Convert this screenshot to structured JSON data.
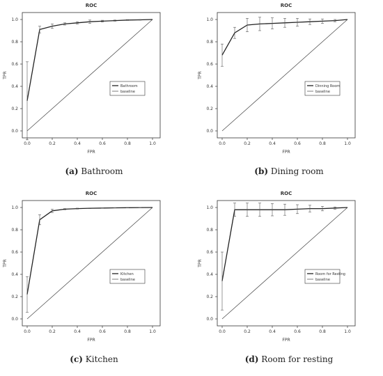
{
  "chart_data": [
    {
      "type": "line",
      "title": "ROC",
      "xlabel": "FPR",
      "ylabel": "TPR",
      "xlim": [
        0,
        1
      ],
      "ylim": [
        0,
        1
      ],
      "xticks": [
        "0.0",
        "0.2",
        "0.4",
        "0.6",
        "0.8",
        "1.0"
      ],
      "yticks": [
        "0.0",
        "0.2",
        "0.4",
        "0.6",
        "0.8",
        "1.0"
      ],
      "legend_position": "center-right",
      "caption_label": "(a)",
      "caption_text": "Bathroom",
      "series": [
        {
          "name": "Bathroom",
          "x": [
            0.0,
            0.1,
            0.2,
            0.3,
            0.4,
            0.5,
            0.6,
            0.7,
            0.8,
            0.9,
            1.0
          ],
          "y": [
            0.27,
            0.91,
            0.94,
            0.96,
            0.97,
            0.98,
            0.985,
            0.99,
            0.995,
            0.997,
            1.0
          ],
          "err": [
            0.35,
            0.03,
            0.02,
            0.01,
            0.01,
            0.015,
            0.008,
            0.005,
            0.004,
            0.003,
            0.0
          ]
        },
        {
          "name": "baseline",
          "x": [
            0,
            1
          ],
          "y": [
            0,
            1
          ]
        }
      ]
    },
    {
      "type": "line",
      "title": "ROC",
      "xlabel": "FPR",
      "ylabel": "TPR",
      "xlim": [
        0,
        1
      ],
      "ylim": [
        0,
        1
      ],
      "xticks": [
        "0.0",
        "0.2",
        "0.4",
        "0.6",
        "0.8",
        "1.0"
      ],
      "yticks": [
        "0.0",
        "0.2",
        "0.4",
        "0.6",
        "0.8",
        "1.0"
      ],
      "legend_position": "center-right",
      "caption_label": "(b)",
      "caption_text": "Dining room",
      "series": [
        {
          "name": "Dinning Room",
          "x": [
            0.0,
            0.1,
            0.2,
            0.3,
            0.4,
            0.5,
            0.6,
            0.7,
            0.8,
            0.9,
            1.0
          ],
          "y": [
            0.68,
            0.88,
            0.95,
            0.96,
            0.965,
            0.97,
            0.975,
            0.98,
            0.985,
            0.99,
            1.0
          ],
          "err": [
            0.1,
            0.05,
            0.06,
            0.06,
            0.05,
            0.04,
            0.035,
            0.025,
            0.02,
            0.01,
            0.0
          ]
        },
        {
          "name": "baseline",
          "x": [
            0,
            1
          ],
          "y": [
            0,
            1
          ]
        }
      ]
    },
    {
      "type": "line",
      "title": "ROC",
      "xlabel": "FPR",
      "ylabel": "TPR",
      "xlim": [
        0,
        1
      ],
      "ylim": [
        0,
        1
      ],
      "xticks": [
        "0.0",
        "0.2",
        "0.4",
        "0.6",
        "0.8",
        "1.0"
      ],
      "yticks": [
        "0.0",
        "0.2",
        "0.4",
        "0.6",
        "0.8",
        "1.0"
      ],
      "legend_position": "center-right",
      "caption_label": "(c)",
      "caption_text": "Kitchen",
      "series": [
        {
          "name": "Kitchen",
          "x": [
            0.0,
            0.1,
            0.2,
            0.3,
            0.4,
            0.5,
            0.6,
            0.7,
            0.8,
            0.9,
            1.0
          ],
          "y": [
            0.22,
            0.89,
            0.97,
            0.985,
            0.99,
            0.993,
            0.995,
            0.997,
            0.998,
            0.999,
            1.0
          ],
          "err": [
            0.16,
            0.045,
            0.015,
            0.005,
            0.004,
            0.003,
            0.002,
            0.002,
            0.001,
            0.001,
            0.0
          ]
        },
        {
          "name": "baseline",
          "x": [
            0,
            1
          ],
          "y": [
            0,
            1
          ]
        }
      ]
    },
    {
      "type": "line",
      "title": "ROC",
      "xlabel": "FPR",
      "ylabel": "TPR",
      "xlim": [
        0,
        1
      ],
      "ylim": [
        0,
        1
      ],
      "xticks": [
        "0.0",
        "0.2",
        "0.4",
        "0.6",
        "0.8",
        "1.0"
      ],
      "yticks": [
        "0.0",
        "0.2",
        "0.4",
        "0.6",
        "0.8",
        "1.0"
      ],
      "legend_position": "center-right",
      "caption_label": "(d)",
      "caption_text": "Room for resting",
      "series": [
        {
          "name": "Room for Resting",
          "x": [
            0.0,
            0.1,
            0.2,
            0.3,
            0.4,
            0.5,
            0.6,
            0.7,
            0.8,
            0.9,
            1.0
          ],
          "y": [
            0.34,
            0.98,
            0.98,
            0.98,
            0.98,
            0.98,
            0.985,
            0.99,
            0.99,
            0.995,
            1.0
          ],
          "err": [
            0.26,
            0.06,
            0.06,
            0.06,
            0.055,
            0.05,
            0.04,
            0.03,
            0.02,
            0.01,
            0.0
          ]
        },
        {
          "name": "baseline",
          "x": [
            0,
            1
          ],
          "y": [
            0,
            1
          ]
        }
      ]
    }
  ]
}
